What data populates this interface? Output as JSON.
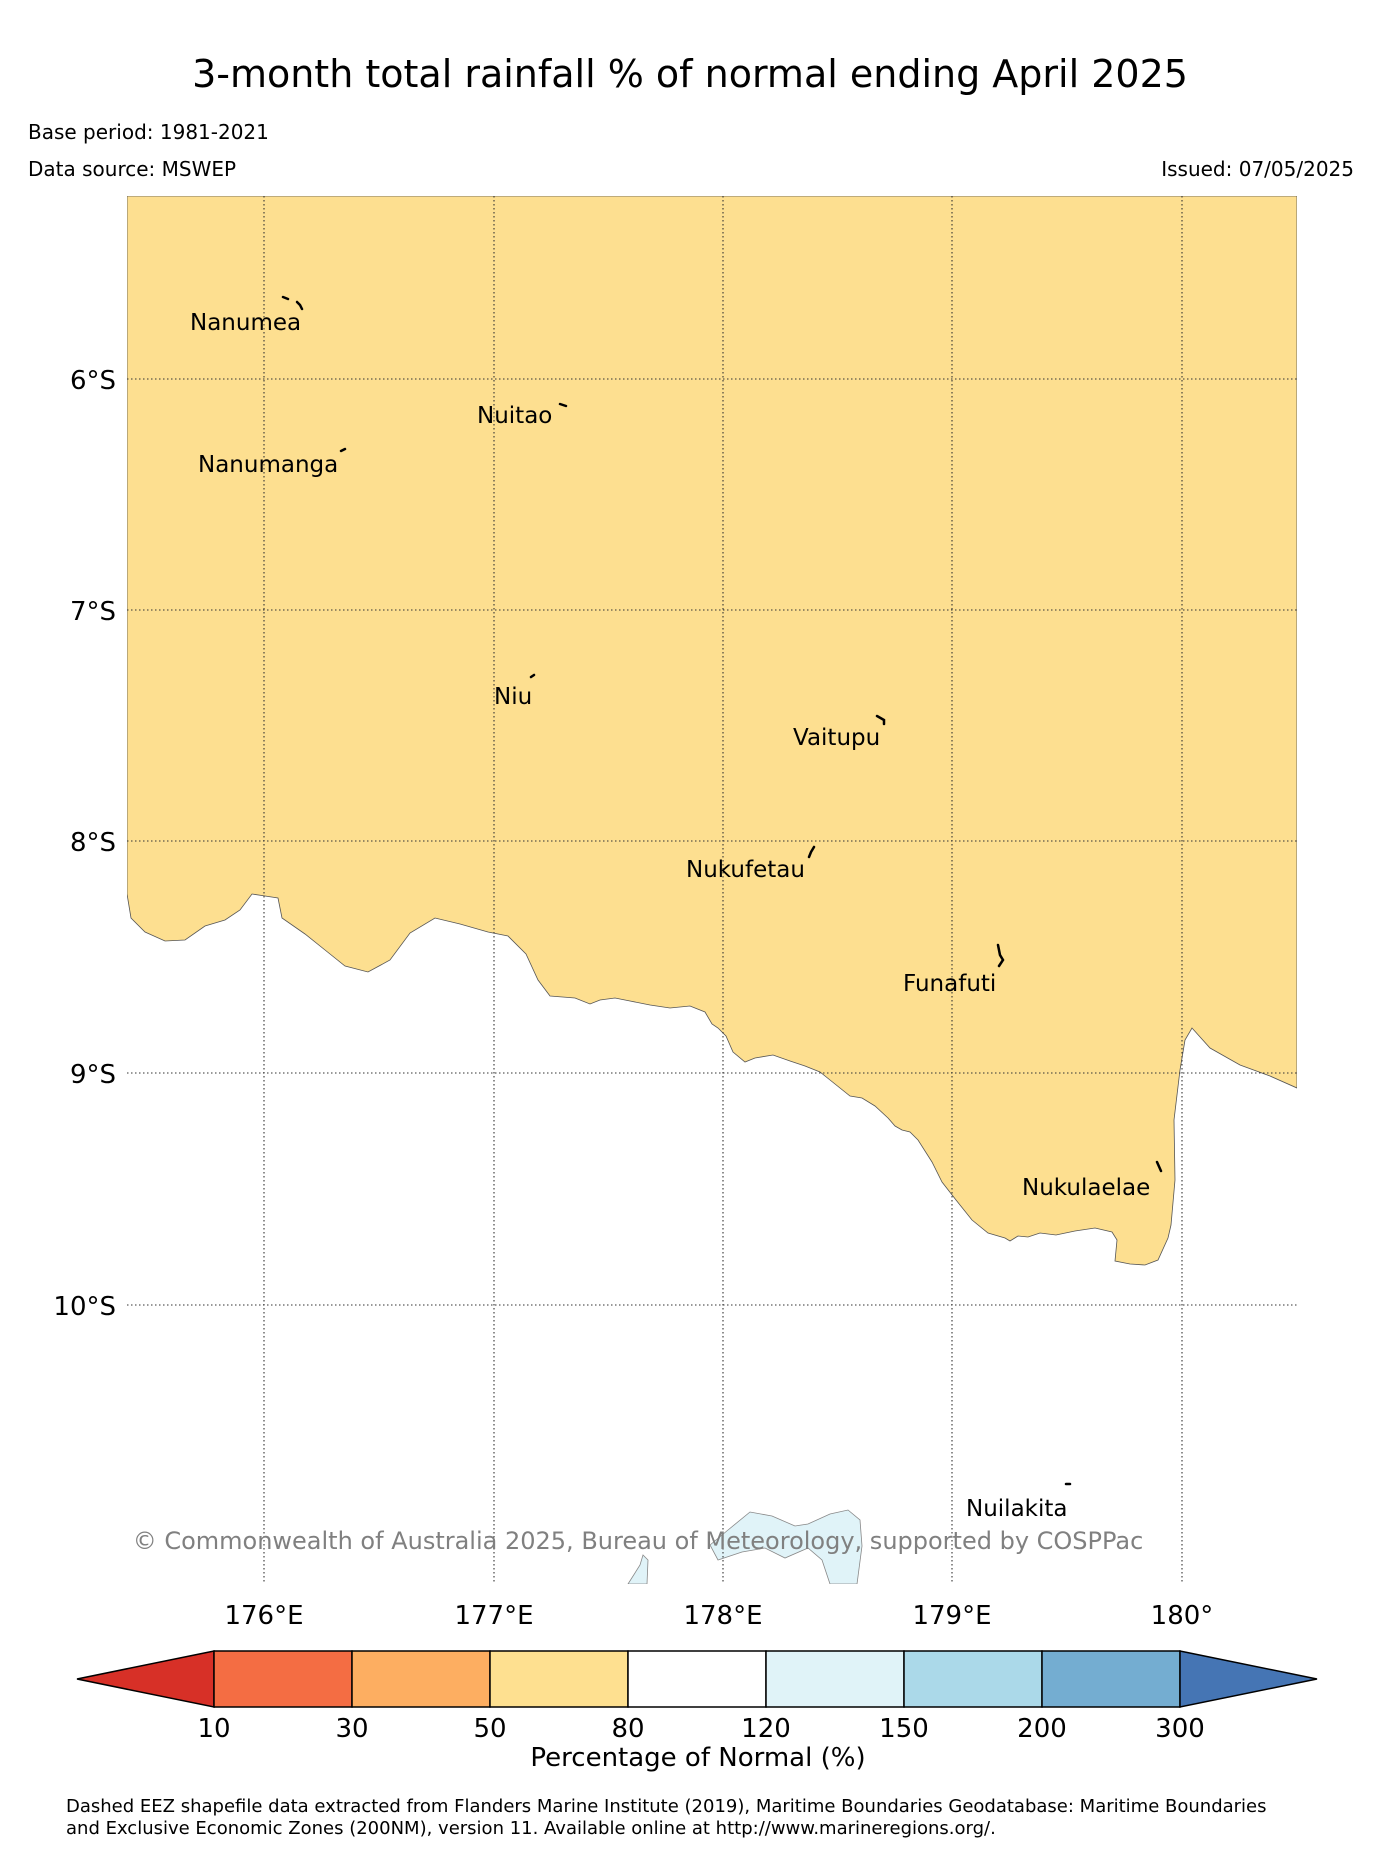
{
  "title": "3-month total rainfall % of normal ending April 2025",
  "base_period": "Base period: 1981-2021",
  "data_source": "Data source: MSWEP",
  "issued": "Issued: 07/05/2025",
  "copyright": "© Commonwealth of Australia 2025, Bureau of Meteorology, supported by COSPPac",
  "lat_labels": [
    "6°S",
    "7°S",
    "8°S",
    "9°S",
    "10°S"
  ],
  "lon_labels": [
    "176°E",
    "177°E",
    "178°E",
    "179°E",
    "180°"
  ],
  "islands": [
    "Nanumea",
    "Nuitao",
    "Nanumanga",
    "Niu",
    "Vaitupu",
    "Nukufetau",
    "Funafuti",
    "Nukulaelae",
    "Nuilakita"
  ],
  "colors": {
    "class_50_80": "#fddf90",
    "class_120_150": "#e0f3f8",
    "bin_colors": [
      "#d73027",
      "#f46d43",
      "#fdae61",
      "#fee090",
      "#ffffff",
      "#e0f3f8",
      "#abd9e9",
      "#74add1",
      "#4575b4"
    ]
  },
  "legend": {
    "ticks": [
      "10",
      "30",
      "50",
      "80",
      "120",
      "150",
      "200",
      "300"
    ],
    "label": "Percentage of Normal (%)"
  },
  "footnote_line1": "Dashed EEZ shapefile data extracted from Flanders Marine Institute (2019), Maritime Boundaries Geodatabase: Maritime Boundaries",
  "footnote_line2": "and Exclusive Economic Zones (200NM), version 11. Available online at http://www.marineregions.org/."
}
